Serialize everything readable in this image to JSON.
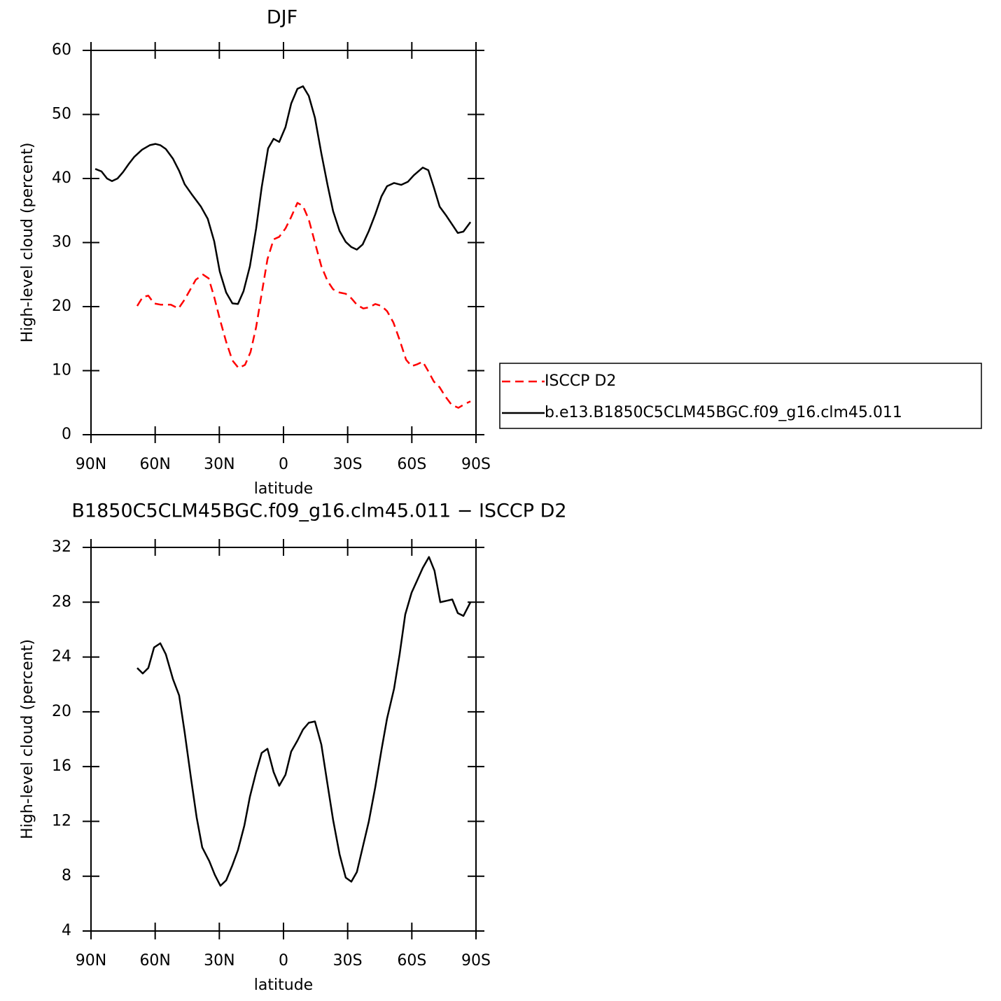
{
  "chart_data": [
    {
      "type": "line",
      "title": "DJF",
      "x_label": "latitude",
      "y_label": "High-level cloud (percent)",
      "xlim": [
        90,
        -90
      ],
      "xticks": [
        {
          "value": 90,
          "label": "90N"
        },
        {
          "value": 60,
          "label": "60N"
        },
        {
          "value": 30,
          "label": "30N"
        },
        0,
        {
          "value": -30,
          "label": "30S"
        },
        {
          "value": -60,
          "label": "60S"
        },
        {
          "value": -90,
          "label": "90S"
        }
      ],
      "ylim": [
        0,
        60
      ],
      "yticks": [
        0,
        10,
        20,
        30,
        40,
        50,
        60
      ],
      "legend": "right",
      "series": [
        {
          "name": "ISCCP D2",
          "color": "#ff0000",
          "dash": true,
          "x": [
            68.4,
            65.8,
            63.2,
            60.5,
            57.3,
            52.7,
            49.1,
            46.2,
            41,
            37.6,
            35,
            32.4,
            29.8,
            26.8,
            23.9,
            21,
            18,
            15.4,
            12.8,
            10.2,
            7.5,
            4.6,
            2,
            -0.9,
            -3.6,
            -6.5,
            -9.1,
            -11.8,
            -14.7,
            -17.7,
            -20.6,
            -23.2,
            -26.2,
            -29.1,
            -31.7,
            -34.3,
            -37.3,
            -40.2,
            -42.9,
            -45.8,
            -48.4,
            -51.4,
            -54.3,
            -57.3,
            -59.9,
            -62.5,
            -65.1,
            -67.7,
            -70.3,
            -73,
            -75.6,
            -78.5,
            -81.8,
            -84.8,
            -87.4
          ],
          "values": [
            20.1,
            21.5,
            21.7,
            20.5,
            20.3,
            20.3,
            19.7,
            21.1,
            24.2,
            25.0,
            24.4,
            21.5,
            18.1,
            14.5,
            11.6,
            10.4,
            10.9,
            12.9,
            16.8,
            22.0,
            27.4,
            30.5,
            30.9,
            32.2,
            34.0,
            36.2,
            35.7,
            33.6,
            30.0,
            26.3,
            24.0,
            22.7,
            22.2,
            22.0,
            21.3,
            20.3,
            19.7,
            19.9,
            20.4,
            20.1,
            19.3,
            17.5,
            14.8,
            11.7,
            10.7,
            11.0,
            11.4,
            9.9,
            8.3,
            7.4,
            6.0,
            4.7,
            4.2,
            4.8,
            5.2
          ]
        },
        {
          "name": "b.e13.B1850C5CLM45BGC.f09_g16.clm45.011",
          "color": "#000000",
          "dash": false,
          "x": [
            88,
            85.1,
            82.5,
            80.2,
            77.6,
            75,
            72.3,
            69.7,
            66.1,
            62.5,
            59.9,
            57.6,
            55,
            51.7,
            48.8,
            46.2,
            42.6,
            38.6,
            35.4,
            32.4,
            29.8,
            26.8,
            23.9,
            21.3,
            18.7,
            15.7,
            12.8,
            10.2,
            7.2,
            4.6,
            2,
            -0.9,
            -3.6,
            -6.5,
            -9.1,
            -11.8,
            -14.7,
            -17.7,
            -20.6,
            -23.2,
            -26.2,
            -29.1,
            -31.7,
            -34.3,
            -37,
            -39.9,
            -42.9,
            -45.8,
            -48.4,
            -51.7,
            -55,
            -58.2,
            -60.9,
            -65.1,
            -67.7,
            -70.3,
            -73,
            -75.9,
            -78.9,
            -81.5,
            -84.1,
            -87.4
          ],
          "values": [
            41.5,
            41.1,
            40.0,
            39.6,
            40.0,
            41.0,
            42.3,
            43.4,
            44.5,
            45.2,
            45.4,
            45.2,
            44.6,
            43.1,
            41.2,
            39.1,
            37.4,
            35.6,
            33.7,
            30.2,
            25.5,
            22.2,
            20.5,
            20.4,
            22.4,
            26.3,
            32.2,
            38.6,
            44.7,
            46.2,
            45.7,
            48.0,
            51.7,
            54.0,
            54.4,
            52.9,
            49.5,
            43.9,
            39.0,
            34.9,
            31.8,
            30.1,
            29.3,
            28.9,
            29.7,
            31.8,
            34.4,
            37.2,
            38.8,
            39.3,
            39.0,
            39.5,
            40.5,
            41.7,
            41.3,
            38.6,
            35.6,
            34.3,
            32.8,
            31.5,
            31.7,
            33.2
          ]
        }
      ]
    },
    {
      "type": "line",
      "title": "B1850C5CLM45BGC.f09_g16.clm45.011 − ISCCP D2",
      "x_label": "latitude",
      "y_label": "High-level cloud (percent)",
      "xlim": [
        90,
        -90
      ],
      "xticks": [
        {
          "value": 90,
          "label": "90N"
        },
        {
          "value": 60,
          "label": "60N"
        },
        {
          "value": 30,
          "label": "30N"
        },
        0,
        {
          "value": -30,
          "label": "30S"
        },
        {
          "value": -60,
          "label": "60S"
        },
        {
          "value": -90,
          "label": "90S"
        }
      ],
      "ylim": [
        4,
        32
      ],
      "yticks": [
        4,
        8,
        12,
        16,
        20,
        24,
        28,
        32
      ],
      "series": [
        {
          "color": "#000000",
          "dash": false,
          "x": [
            68.4,
            65.8,
            63.2,
            60.5,
            57.6,
            55,
            51.7,
            48.8,
            46.2,
            43.2,
            40.6,
            38,
            34.7,
            32.1,
            29.5,
            26.8,
            23.9,
            21.3,
            18.3,
            15.7,
            12.8,
            10.2,
            7.5,
            4.6,
            2,
            -0.9,
            -3.6,
            -6.5,
            -9.1,
            -11.8,
            -14.7,
            -17.7,
            -20.6,
            -23.2,
            -26.2,
            -29.1,
            -31.7,
            -34.3,
            -37,
            -39.9,
            -42.9,
            -45.8,
            -48.4,
            -51.7,
            -54.3,
            -56.9,
            -59.9,
            -62.5,
            -65.1,
            -68,
            -70.6,
            -73.3,
            -76.2,
            -78.9,
            -81.5,
            -84.1,
            -87.4
          ],
          "values": [
            23.2,
            22.8,
            23.2,
            24.7,
            25.0,
            24.2,
            22.4,
            21.2,
            18.5,
            15.1,
            12.3,
            10.1,
            9.1,
            8.1,
            7.3,
            7.7,
            8.8,
            9.9,
            11.7,
            13.8,
            15.6,
            17.0,
            17.3,
            15.6,
            14.6,
            15.4,
            17.1,
            17.9,
            18.7,
            19.2,
            19.3,
            17.6,
            14.7,
            12.1,
            9.6,
            7.9,
            7.6,
            8.3,
            10.1,
            12.0,
            14.5,
            17.2,
            19.5,
            21.7,
            24.2,
            27.1,
            28.7,
            29.6,
            30.5,
            31.3,
            30.3,
            28.0,
            28.1,
            28.2,
            27.2,
            27.0,
            28.0
          ]
        }
      ]
    }
  ]
}
